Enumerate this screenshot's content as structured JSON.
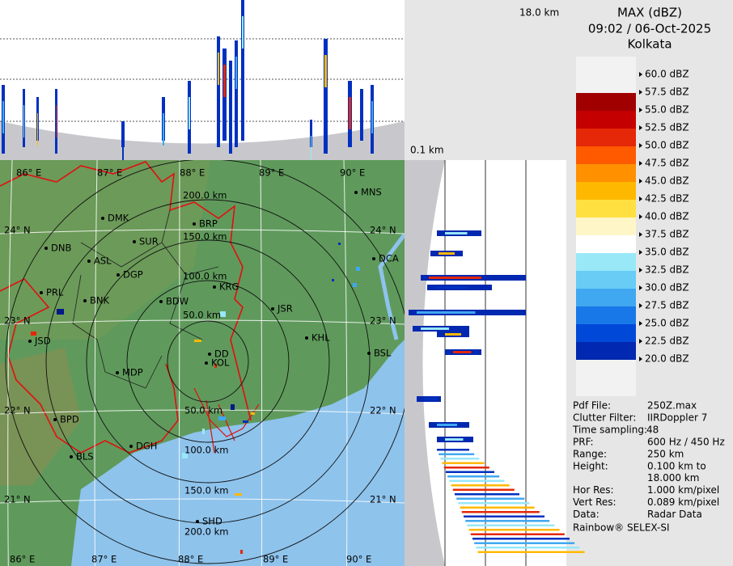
{
  "header": {
    "title": "MAX (dBZ)",
    "datetime": "09:02 / 06-Oct-2025",
    "station": "Kolkata"
  },
  "sections": {
    "max_height": "18.0 km",
    "min_height": "0.1 km"
  },
  "legend": [
    {
      "label": "60.0 dBZ",
      "color": "#f0f0f0"
    },
    {
      "label": "57.5 dBZ",
      "color": "#a00000"
    },
    {
      "label": "55.0 dBZ",
      "color": "#c40000"
    },
    {
      "label": "52.5 dBZ",
      "color": "#e42808"
    },
    {
      "label": "50.0 dBZ",
      "color": "#ff5a00"
    },
    {
      "label": "47.5 dBZ",
      "color": "#ff9000"
    },
    {
      "label": "45.0 dBZ",
      "color": "#ffb800"
    },
    {
      "label": "42.5 dBZ",
      "color": "#ffe040"
    },
    {
      "label": "40.0 dBZ",
      "color": "#fff6c8"
    },
    {
      "label": "37.5 dBZ",
      "color": "#ffffff"
    },
    {
      "label": "35.0 dBZ",
      "color": "#98e8f8"
    },
    {
      "label": "32.5 dBZ",
      "color": "#68ccf4"
    },
    {
      "label": "30.0 dBZ",
      "color": "#40a8f0"
    },
    {
      "label": "27.5 dBZ",
      "color": "#1878e8"
    },
    {
      "label": "25.0 dBZ",
      "color": "#0048d8"
    },
    {
      "label": "22.5 dBZ",
      "color": "#0028b0"
    },
    {
      "label": "20.0 dBZ",
      "color": "#001888"
    }
  ],
  "info": [
    {
      "label": "Pdf File:",
      "value": "250Z.max"
    },
    {
      "label": "Clutter Filter:",
      "value": "IIRDoppler 7"
    },
    {
      "label": "Time sampling:",
      "value": "48"
    },
    {
      "label": "PRF:",
      "value": "600 Hz / 450 Hz"
    },
    {
      "label": "Range:",
      "value": "250 km"
    },
    {
      "label": "Height:",
      "value": "0.100 km to",
      "value2": "18.000 km"
    },
    {
      "label": "Hor Res:",
      "value": "1.000 km/pixel"
    },
    {
      "label": "Vert Res:",
      "value": "0.089 km/pixel"
    },
    {
      "label": "Data:",
      "value": "Radar Data"
    }
  ],
  "footer": "Rainbow® SELEX-SI",
  "map": {
    "lon_labels_top": [
      "86° E",
      "87° E",
      "88° E",
      "89° E",
      "90° E"
    ],
    "lon_labels_bottom": [
      "86° E",
      "87° E",
      "88° E",
      "89° E",
      "90° E"
    ],
    "lat_labels_left": [
      "24° N",
      "23° N",
      "22° N",
      "21° N"
    ],
    "lat_labels_right": [
      "24° N",
      "23° N",
      "22° N",
      "21° N"
    ],
    "range_labels_top": [
      "50.0 km",
      "100.0 km",
      "150.0 km",
      "200.0 km"
    ],
    "range_labels_bottom": [
      "50.0 km",
      "100.0 km",
      "150.0 km",
      "200.0 km"
    ],
    "cities": [
      "MNS",
      "DMK",
      "BRP",
      "DNB",
      "SUR",
      "ASL",
      "DGP",
      "DCA",
      "KRG",
      "PRL",
      "BNK",
      "BDW",
      "JSR",
      "KHL",
      "JSD",
      "DD",
      "KOL",
      "BSL",
      "MDP",
      "BPD",
      "DGH",
      "BLS",
      "SHD"
    ]
  }
}
